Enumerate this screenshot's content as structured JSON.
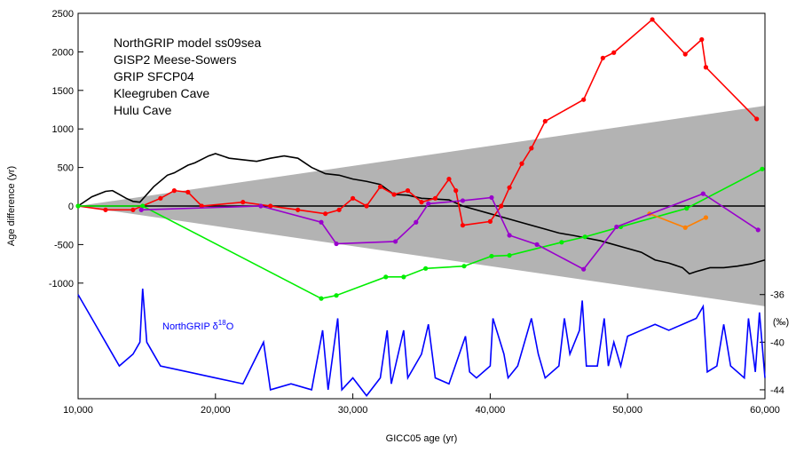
{
  "chart_data": {
    "type": "line",
    "xlabel": "GICC05 age (yr)",
    "ylabel": "Age difference (yr)",
    "y2label": "(‰)",
    "annotation": {
      "prefix": "NorthGRIP δ",
      "sup": "18",
      "suffix": "O",
      "color": "#0000ff"
    },
    "xlim": [
      10000,
      60000
    ],
    "ylim": [
      -2500,
      2500
    ],
    "y2lim": [
      -44.75,
      -12.37
    ],
    "xticks": [
      {
        "value": 10000,
        "label": "10,000"
      },
      {
        "value": 20000,
        "label": "20,000"
      },
      {
        "value": 30000,
        "label": "30,000"
      },
      {
        "value": 40000,
        "label": "40,000"
      },
      {
        "value": 50000,
        "label": "50,000"
      },
      {
        "value": 60000,
        "label": "60,000"
      }
    ],
    "yticks": [
      2500,
      2000,
      1500,
      1000,
      500,
      0,
      -500,
      -1000
    ],
    "y2ticks": [
      -36,
      -40,
      -44
    ],
    "zero_line": true,
    "band": {
      "x": [
        10000,
        60000
      ],
      "upper": [
        0,
        1300
      ],
      "lower": [
        0,
        -1300
      ],
      "color": "#b3b3b3"
    },
    "series": [
      {
        "name": "NorthGRIP model ss09sea",
        "color": "#000000",
        "markers": false,
        "x": [
          10000,
          11000,
          12000,
          12500,
          13000,
          13500,
          14000,
          14500,
          15500,
          16500,
          17000,
          18000,
          18500,
          19500,
          20000,
          21000,
          22000,
          23000,
          24000,
          25000,
          26000,
          27000,
          28000,
          29000,
          30000,
          31000,
          32000,
          33000,
          34000,
          35000,
          36000,
          37000,
          38000,
          39000,
          40000,
          41000,
          42000,
          44000,
          45000,
          46000,
          48000,
          50000,
          51000,
          52000,
          53000,
          54000,
          54500,
          55000,
          56000,
          57000,
          58000,
          59000,
          60000
        ],
        "values": [
          0,
          120,
          190,
          200,
          150,
          100,
          60,
          50,
          250,
          400,
          430,
          530,
          560,
          650,
          680,
          620,
          600,
          580,
          620,
          650,
          620,
          500,
          420,
          400,
          350,
          320,
          280,
          150,
          140,
          100,
          90,
          80,
          0,
          -50,
          -100,
          -150,
          -200,
          -300,
          -350,
          -380,
          -450,
          -550,
          -600,
          -700,
          -740,
          -800,
          -880,
          -850,
          -800,
          -800,
          -780,
          -750,
          -700
        ]
      },
      {
        "name": "GISP2 Meese-Sowers",
        "color": "#ff0000",
        "markers": true,
        "x": [
          10000,
          12000,
          14000,
          16000,
          17000,
          18000,
          19000,
          22000,
          24000,
          26000,
          28000,
          29000,
          30000,
          31000,
          32000,
          33000,
          34000,
          35000,
          36000,
          37000,
          37500,
          38000,
          40000,
          40800,
          41400,
          42300,
          43000,
          44000,
          46800,
          48200,
          49000,
          51800,
          54200,
          55400,
          55700,
          59400
        ],
        "values": [
          0,
          -50,
          -50,
          100,
          200,
          180,
          0,
          50,
          0,
          -50,
          -100,
          -50,
          100,
          0,
          250,
          150,
          200,
          50,
          100,
          350,
          200,
          -250,
          -200,
          0,
          240,
          550,
          750,
          1100,
          1380,
          1920,
          1990,
          2420,
          1970,
          2160,
          1800,
          1130
        ]
      },
      {
        "name": "GRIP SFCP04",
        "color": "#00ee00",
        "markers": true,
        "x": [
          10000,
          14700,
          27700,
          28800,
          32400,
          33700,
          35300,
          38100,
          40100,
          41400,
          45200,
          46900,
          49500,
          54300,
          59800
        ],
        "values": [
          0,
          0,
          -1200,
          -1160,
          -920,
          -920,
          -810,
          -780,
          -650,
          -640,
          -470,
          -400,
          -270,
          -30,
          480
        ]
      },
      {
        "name": "Kleegruben Cave",
        "color": "#ff7f00",
        "markers": true,
        "x": [
          51600,
          54200,
          55700
        ],
        "values": [
          -100,
          -280,
          -150
        ]
      },
      {
        "name": "Hulu Cave",
        "color": "#9900cc",
        "markers": true,
        "x": [
          14600,
          23300,
          27700,
          28800,
          33100,
          34600,
          35500,
          38000,
          40100,
          41400,
          43400,
          46800,
          49200,
          55500,
          59500
        ],
        "values": [
          -50,
          0,
          -210,
          -490,
          -460,
          -210,
          30,
          70,
          110,
          -380,
          -500,
          -820,
          -270,
          160,
          -310
        ]
      },
      {
        "color": "#0000ff",
        "markers": false,
        "axis": "y2",
        "x": [
          10000,
          10500,
          11000,
          12000,
          13000,
          14000,
          14500,
          14700,
          15000,
          16000,
          18000,
          20000,
          22000,
          23500,
          24000,
          25500,
          27000,
          27800,
          28200,
          28900,
          29200,
          30000,
          31000,
          32000,
          32500,
          32800,
          33700,
          34000,
          35000,
          35500,
          36000,
          37000,
          38200,
          38500,
          39000,
          40000,
          40200,
          41000,
          41300,
          42000,
          43000,
          43500,
          44000,
          45000,
          45400,
          45800,
          46500,
          46700,
          47000,
          47800,
          48300,
          48600,
          49000,
          49500,
          50000,
          51000,
          52000,
          53000,
          54000,
          55000,
          55500,
          55800,
          56500,
          57000,
          57500,
          58500,
          58800,
          59300,
          59600,
          60000
        ],
        "values": [
          -36,
          -37,
          -38,
          -40,
          -42,
          -41,
          -40,
          -35.5,
          -40,
          -42,
          -42.5,
          -43,
          -43.5,
          -40,
          -44,
          -43.5,
          -44,
          -39,
          -44,
          -38,
          -44,
          -43,
          -44.5,
          -43,
          -39,
          -43.5,
          -39,
          -43,
          -41,
          -38.5,
          -43,
          -43.5,
          -39.5,
          -42.5,
          -43,
          -42,
          -38,
          -41,
          -43,
          -42,
          -38,
          -41,
          -43,
          -42,
          -38,
          -41,
          -39,
          -36.5,
          -42,
          -42,
          -38,
          -42,
          -40,
          -42,
          -39.5,
          -39,
          -38.5,
          -39,
          -38.5,
          -38,
          -37,
          -42.5,
          -42,
          -38.5,
          -42,
          -43,
          -38,
          -42.5,
          -37.5,
          -43
        ]
      }
    ]
  }
}
